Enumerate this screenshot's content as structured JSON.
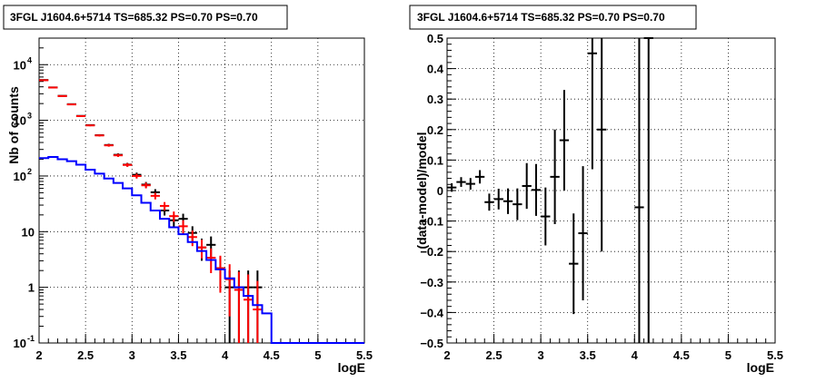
{
  "chart_data": [
    {
      "type": "scatter",
      "title": "3FGL J1604.6+5714 TS=685.32 PS=0.70 PS=0.70",
      "xlabel": "logE",
      "ylabel": "Nb of counts",
      "xlim": [
        2,
        5.5
      ],
      "ylim": [
        0.1,
        30000
      ],
      "yscale": "log",
      "grid": true,
      "x_ticks": [
        "2",
        "2.5",
        "3",
        "3.5",
        "4",
        "4.5",
        "5",
        "5.5"
      ],
      "y_ticks": [
        {
          "value": 0.1,
          "label": "10",
          "exp": "-1"
        },
        {
          "value": 1,
          "label": "1",
          "exp": ""
        },
        {
          "value": 10,
          "label": "10",
          "exp": ""
        },
        {
          "value": 100,
          "label": "10",
          "exp": "2"
        },
        {
          "value": 1000,
          "label": "10",
          "exp": "3"
        },
        {
          "value": 10000,
          "label": "10",
          "exp": "4"
        }
      ],
      "series": [
        {
          "color": "#000000",
          "style": "errorbar",
          "points": [
            {
              "x": 2.05,
              "y": 5300,
              "lo": 5230,
              "hi": 5370
            },
            {
              "x": 2.15,
              "y": 3900,
              "lo": 3840,
              "hi": 3960
            },
            {
              "x": 2.25,
              "y": 2750,
              "lo": 2700,
              "hi": 2800
            },
            {
              "x": 2.35,
              "y": 1950,
              "lo": 1910,
              "hi": 1990
            },
            {
              "x": 2.45,
              "y": 1200,
              "lo": 1165,
              "hi": 1235
            },
            {
              "x": 2.55,
              "y": 820,
              "lo": 792,
              "hi": 848
            },
            {
              "x": 2.65,
              "y": 540,
              "lo": 517,
              "hi": 563
            },
            {
              "x": 2.75,
              "y": 360,
              "lo": 341,
              "hi": 379
            },
            {
              "x": 2.85,
              "y": 240,
              "lo": 225,
              "hi": 255
            },
            {
              "x": 2.95,
              "y": 160,
              "lo": 148,
              "hi": 172
            },
            {
              "x": 3.05,
              "y": 105,
              "lo": 95,
              "hi": 115
            },
            {
              "x": 3.15,
              "y": 70,
              "lo": 62,
              "hi": 78
            },
            {
              "x": 3.25,
              "y": 51,
              "lo": 44,
              "hi": 58
            },
            {
              "x": 3.35,
              "y": 24,
              "lo": 19.5,
              "hi": 29
            },
            {
              "x": 3.45,
              "y": 16,
              "lo": 12,
              "hi": 20
            },
            {
              "x": 3.55,
              "y": 17,
              "lo": 13,
              "hi": 21
            },
            {
              "x": 3.65,
              "y": 9.5,
              "lo": 6.5,
              "hi": 12.5
            },
            {
              "x": 3.75,
              "y": 5.2,
              "lo": 3,
              "hi": 7.5
            },
            {
              "x": 3.85,
              "y": 5.8,
              "lo": 3.5,
              "hi": 8.2
            },
            {
              "x": 3.95,
              "y": 2.2,
              "lo": 0.9,
              "hi": 3.5
            },
            {
              "x": 4.05,
              "y": 1,
              "lo": 0.1,
              "hi": 2
            },
            {
              "x": 4.15,
              "y": 1,
              "lo": 0.1,
              "hi": 2
            },
            {
              "x": 4.25,
              "y": 1,
              "lo": 0.1,
              "hi": 2
            },
            {
              "x": 4.35,
              "y": 1,
              "lo": 0.1,
              "hi": 2
            }
          ]
        },
        {
          "color": "#ff0000",
          "style": "errorbar",
          "points": [
            {
              "x": 2.05,
              "y": 5250,
              "lo": 5180,
              "hi": 5320
            },
            {
              "x": 2.15,
              "y": 3880,
              "lo": 3820,
              "hi": 3940
            },
            {
              "x": 2.25,
              "y": 2730,
              "lo": 2680,
              "hi": 2780
            },
            {
              "x": 2.35,
              "y": 1930,
              "lo": 1890,
              "hi": 1970
            },
            {
              "x": 2.45,
              "y": 1190,
              "lo": 1155,
              "hi": 1225
            },
            {
              "x": 2.55,
              "y": 810,
              "lo": 782,
              "hi": 838
            },
            {
              "x": 2.65,
              "y": 535,
              "lo": 512,
              "hi": 558
            },
            {
              "x": 2.75,
              "y": 355,
              "lo": 336,
              "hi": 374
            },
            {
              "x": 2.85,
              "y": 235,
              "lo": 220,
              "hi": 250
            },
            {
              "x": 2.95,
              "y": 158,
              "lo": 146,
              "hi": 170
            },
            {
              "x": 3.05,
              "y": 100,
              "lo": 90,
              "hi": 110
            },
            {
              "x": 3.15,
              "y": 68,
              "lo": 60,
              "hi": 76
            },
            {
              "x": 3.25,
              "y": 44,
              "lo": 38,
              "hi": 50
            },
            {
              "x": 3.35,
              "y": 29,
              "lo": 24,
              "hi": 34
            },
            {
              "x": 3.45,
              "y": 19,
              "lo": 15,
              "hi": 23
            },
            {
              "x": 3.55,
              "y": 12.5,
              "lo": 9,
              "hi": 16
            },
            {
              "x": 3.65,
              "y": 8,
              "lo": 5.5,
              "hi": 10.5
            },
            {
              "x": 3.75,
              "y": 5.2,
              "lo": 3.3,
              "hi": 7.2
            },
            {
              "x": 3.85,
              "y": 3.4,
              "lo": 1.8,
              "hi": 5
            },
            {
              "x": 3.95,
              "y": 2.2,
              "lo": 0.8,
              "hi": 3.7
            },
            {
              "x": 4.05,
              "y": 1.4,
              "lo": 0.3,
              "hi": 2.6
            },
            {
              "x": 4.15,
              "y": 0.9,
              "lo": 0.1,
              "hi": 1.9
            },
            {
              "x": 4.25,
              "y": 0.6,
              "lo": 0.1,
              "hi": 1.7
            },
            {
              "x": 4.35,
              "y": 0.4,
              "lo": 0.1,
              "hi": 1.3
            }
          ]
        },
        {
          "color": "#0000ff",
          "style": "step",
          "edges": [
            2.0,
            2.1,
            2.2,
            2.3,
            2.4,
            2.5,
            2.6,
            2.7,
            2.8,
            2.9,
            3.0,
            3.1,
            3.2,
            3.3,
            3.4,
            3.5,
            3.6,
            3.7,
            3.8,
            3.9,
            4.0,
            4.1,
            4.2,
            4.3,
            4.4,
            4.5,
            5.5
          ],
          "values": [
            210,
            220,
            200,
            185,
            160,
            130,
            110,
            90,
            75,
            60,
            45,
            33,
            24,
            17,
            12,
            9,
            6.5,
            4.5,
            3.1,
            2.1,
            1.45,
            1.0,
            0.7,
            0.48,
            0.34,
            0.1
          ]
        }
      ]
    },
    {
      "type": "scatter",
      "title": "3FGL J1604.6+5714 TS=685.32 PS=0.70 PS=0.70",
      "xlabel": "logE",
      "ylabel": "(data-model)/model",
      "xlim": [
        2,
        5.5
      ],
      "ylim": [
        -0.5,
        0.5
      ],
      "grid": true,
      "x_ticks": [
        "2",
        "2.5",
        "3",
        "3.5",
        "4",
        "4.5",
        "5",
        "5.5"
      ],
      "y_ticks": [
        "-0.5",
        "-0.4",
        "-0.3",
        "-0.2",
        "-0.1",
        "0",
        "0.1",
        "0.2",
        "0.3",
        "0.4",
        "0.5"
      ],
      "series": [
        {
          "color": "#000000",
          "style": "errorbar",
          "points": [
            {
              "x": 2.05,
              "y": 0.01,
              "err": 0.014
            },
            {
              "x": 2.15,
              "y": 0.028,
              "err": 0.016
            },
            {
              "x": 2.25,
              "y": 0.022,
              "err": 0.019
            },
            {
              "x": 2.35,
              "y": 0.045,
              "err": 0.022
            },
            {
              "x": 2.45,
              "y": -0.038,
              "err": 0.028
            },
            {
              "x": 2.55,
              "y": -0.028,
              "err": 0.034
            },
            {
              "x": 2.65,
              "y": -0.035,
              "err": 0.042
            },
            {
              "x": 2.75,
              "y": -0.045,
              "err": 0.052
            },
            {
              "x": 2.85,
              "y": 0.015,
              "err": 0.075
            },
            {
              "x": 2.95,
              "y": 0.002,
              "err": 0.085
            },
            {
              "x": 3.05,
              "y": -0.085,
              "err": 0.095
            },
            {
              "x": 3.15,
              "y": 0.045,
              "err": 0.155
            },
            {
              "x": 3.25,
              "y": 0.165,
              "err": 0.165
            },
            {
              "x": 3.35,
              "y": -0.24,
              "err": 0.165
            },
            {
              "x": 3.45,
              "y": -0.14,
              "err": 0.22
            },
            {
              "x": 3.55,
              "y": 0.45,
              "err": 0.38
            },
            {
              "x": 3.65,
              "y": 0.2,
              "err": 0.4
            },
            {
              "x": 4.05,
              "y": -0.055,
              "err": 0.8
            },
            {
              "x": 4.15,
              "y": 0.5,
              "err": 1.0
            }
          ]
        }
      ]
    }
  ]
}
